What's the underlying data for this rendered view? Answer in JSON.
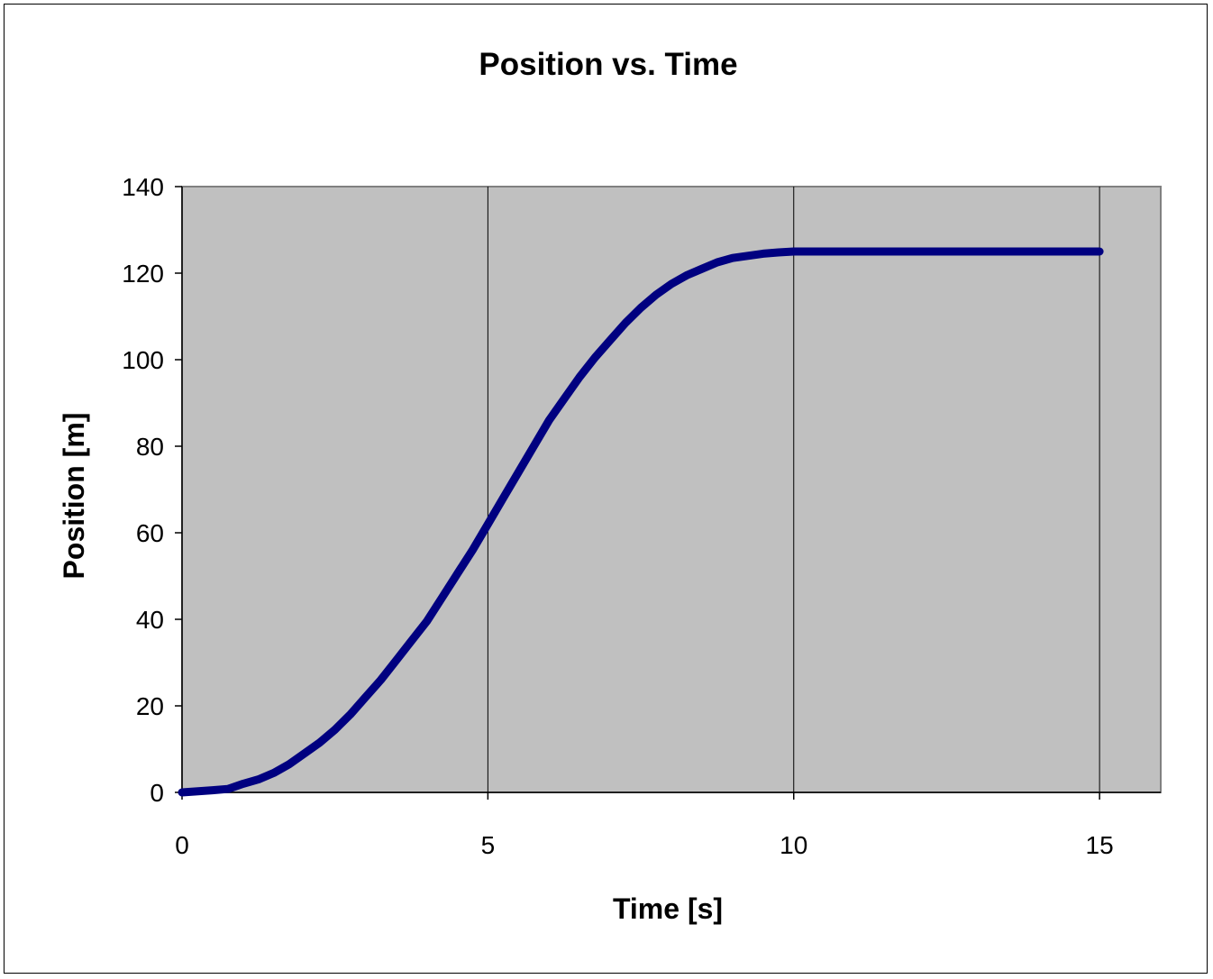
{
  "chart_data": {
    "type": "line",
    "title": "Position vs. Time",
    "xlabel": "Time [s]",
    "ylabel": "Position [m]",
    "xlim": [
      0,
      16
    ],
    "ylim": [
      0,
      140
    ],
    "x_ticks": [
      "0",
      "5",
      "10",
      "15"
    ],
    "y_ticks": [
      "0",
      "20",
      "40",
      "60",
      "80",
      "100",
      "120",
      "140"
    ],
    "grid": "vertical major lines",
    "plot_background": "#c0c0c0",
    "line_color": "#000080",
    "series": [
      {
        "x": [
          0,
          0.5,
          0.75,
          1,
          1.25,
          1.5,
          1.75,
          2,
          2.25,
          2.5,
          2.75,
          3,
          3.25,
          3.5,
          3.75,
          4,
          4.25,
          4.5,
          4.75,
          5,
          5.25,
          5.5,
          5.75,
          6,
          6.25,
          6.5,
          6.75,
          7,
          7.25,
          7.5,
          7.75,
          8,
          8.25,
          8.5,
          8.75,
          9,
          9.25,
          9.5,
          9.75,
          10,
          11,
          12,
          13,
          14,
          15
        ],
        "y": [
          0,
          0.5,
          0.8,
          2,
          3,
          4.5,
          6.5,
          9,
          11.5,
          14.5,
          18,
          22,
          26,
          30.5,
          35,
          39.5,
          45,
          50.5,
          56,
          62,
          68,
          74,
          80,
          86,
          91,
          96,
          100.5,
          104.5,
          108.5,
          112,
          115,
          117.5,
          119.5,
          121,
          122.5,
          123.5,
          124,
          124.5,
          124.8,
          125,
          125,
          125,
          125,
          125,
          125
        ]
      }
    ]
  }
}
